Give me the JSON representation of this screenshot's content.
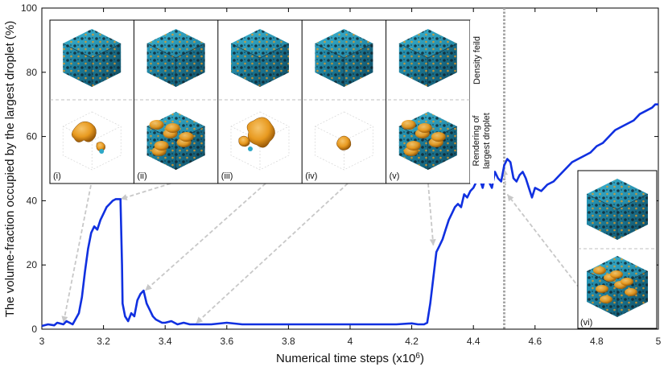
{
  "chart_data": {
    "type": "line",
    "xlabel": "Numerical time steps (x10",
    "xlabel_sup": "6",
    "xlabel_close": ")",
    "ylabel": "The volume-fraction occupied by the largest droplet (%)",
    "xlim": [
      3,
      5
    ],
    "ylim": [
      0,
      100
    ],
    "x_ticks": [
      "3",
      "3.2",
      "3.4",
      "3.6",
      "3.8",
      "4",
      "4.2",
      "4.4",
      "4.6",
      "4.8",
      "5"
    ],
    "y_ticks": [
      "0",
      "20",
      "40",
      "60",
      "80",
      "100"
    ],
    "grid": false,
    "line_color": "#1030e0",
    "marker_x": 4.5,
    "series": [
      {
        "name": "",
        "x": [
          3.0,
          3.02,
          3.04,
          3.05,
          3.07,
          3.08,
          3.1,
          3.12,
          3.13,
          3.14,
          3.15,
          3.16,
          3.17,
          3.18,
          3.19,
          3.2,
          3.21,
          3.22,
          3.23,
          3.24,
          3.255,
          3.26,
          3.262,
          3.27,
          3.28,
          3.29,
          3.3,
          3.31,
          3.32,
          3.33,
          3.34,
          3.35,
          3.36,
          3.37,
          3.38,
          3.39,
          3.4,
          3.42,
          3.44,
          3.46,
          3.48,
          3.5,
          3.55,
          3.6,
          3.65,
          3.7,
          3.75,
          3.8,
          3.85,
          3.9,
          3.95,
          4.0,
          4.05,
          4.1,
          4.15,
          4.2,
          4.22,
          4.24,
          4.25,
          4.26,
          4.27,
          4.28,
          4.29,
          4.3,
          4.31,
          4.32,
          4.33,
          4.34,
          4.35,
          4.36,
          4.37,
          4.38,
          4.39,
          4.4,
          4.41,
          4.42,
          4.43,
          4.44,
          4.45,
          4.46,
          4.47,
          4.48,
          4.49,
          4.5,
          4.51,
          4.52,
          4.53,
          4.54,
          4.55,
          4.56,
          4.57,
          4.58,
          4.59,
          4.6,
          4.62,
          4.64,
          4.66,
          4.68,
          4.7,
          4.72,
          4.74,
          4.76,
          4.78,
          4.8,
          4.82,
          4.84,
          4.86,
          4.88,
          4.9,
          4.92,
          4.94,
          4.96,
          4.98,
          4.99,
          5.0
        ],
        "values": [
          1,
          1.5,
          1.2,
          2,
          1.5,
          2.5,
          1.5,
          5,
          10,
          18,
          25,
          30,
          32,
          31,
          34,
          36,
          38,
          39,
          40,
          40.5,
          40.5,
          20,
          8,
          4,
          2.5,
          5,
          4,
          9,
          11,
          12,
          8,
          6,
          4,
          3,
          2.5,
          2,
          2,
          2.5,
          1.5,
          2,
          1.5,
          1.5,
          1.5,
          2,
          1.5,
          1.5,
          1.5,
          1.5,
          1.5,
          1.5,
          1.5,
          1.5,
          1.5,
          1.5,
          1.5,
          1.8,
          1.5,
          1.5,
          2,
          8,
          16,
          24,
          26,
          28,
          31,
          34,
          36,
          38,
          39,
          38,
          42,
          41,
          43,
          44,
          46,
          47,
          44,
          48,
          46,
          44,
          49,
          47,
          46,
          51,
          53,
          52,
          47,
          46,
          48,
          49,
          47,
          44,
          41,
          44,
          43,
          45,
          46,
          48,
          50,
          52,
          53,
          54,
          55,
          57,
          58,
          60,
          62,
          63,
          64,
          65,
          67,
          68,
          69,
          70,
          70
        ]
      }
    ]
  },
  "insets": {
    "top_panels": [
      "(i)",
      "(ii)",
      "(iii)",
      "(iv)",
      "(v)"
    ],
    "right_panel": "(vi)",
    "side_label_top": "Density feild",
    "side_label_bottom_1": "Rendering of",
    "side_label_bottom_2": "largest droplet",
    "colors": {
      "blue": "#2ea8c8",
      "orange": "#e89a20",
      "dark": "#1a2830",
      "arrow": "#c8c8c8"
    }
  }
}
